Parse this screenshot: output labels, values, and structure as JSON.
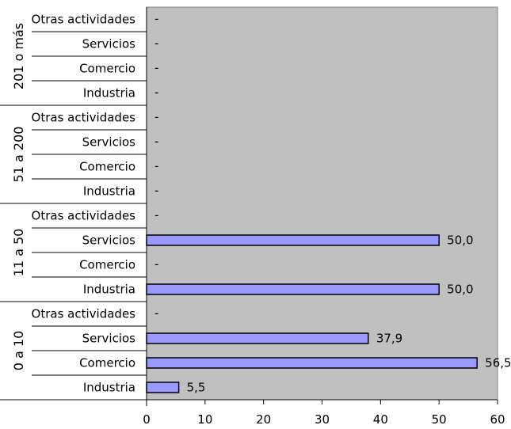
{
  "chart_data": {
    "type": "bar",
    "orientation": "horizontal",
    "title": "",
    "xlabel": "",
    "ylabel": "",
    "xlim": [
      0,
      60
    ],
    "xticks": [
      "0",
      "10",
      "20",
      "30",
      "40",
      "50",
      "60"
    ],
    "groups": [
      {
        "label": "201 o más",
        "categories": [
          "Otras actividades",
          "Servicios",
          "Comercio",
          "Industria"
        ],
        "values": [
          null,
          null,
          null,
          null
        ],
        "labels": [
          "-",
          "-",
          "-",
          "-"
        ]
      },
      {
        "label": "51 a 200",
        "categories": [
          "Otras actividades",
          "Servicios",
          "Comercio",
          "Industria"
        ],
        "values": [
          null,
          null,
          null,
          null
        ],
        "labels": [
          "-",
          "-",
          "-",
          "-"
        ]
      },
      {
        "label": "11 a 50",
        "categories": [
          "Otras actividades",
          "Servicios",
          "Comercio",
          "Industria"
        ],
        "values": [
          null,
          50.0,
          null,
          50.0
        ],
        "labels": [
          "-",
          "50,0",
          "-",
          "50,0"
        ]
      },
      {
        "label": "0 a 10",
        "categories": [
          "Otras actividades",
          "Servicios",
          "Comercio",
          "Industria"
        ],
        "values": [
          null,
          37.9,
          56.5,
          5.5
        ],
        "labels": [
          "-",
          "37,9",
          "56,5",
          "5,5"
        ]
      }
    ],
    "grid": false,
    "colors": {
      "plot_background": "#c0c0c0",
      "bar_fill": "#9999ff",
      "bar_stroke": "#000000"
    }
  }
}
